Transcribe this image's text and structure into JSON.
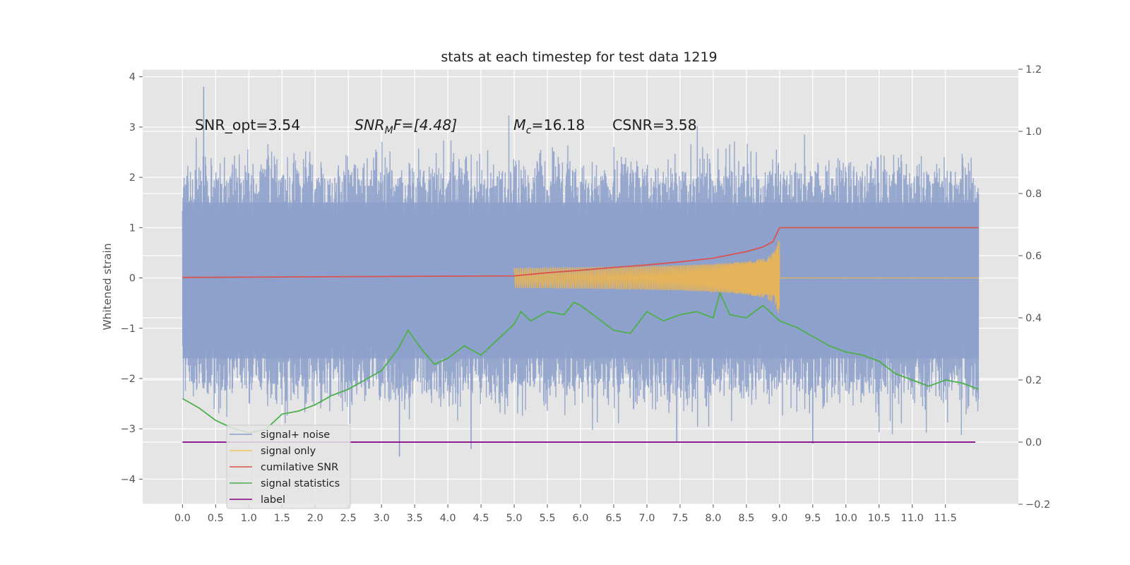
{
  "chart_data": {
    "type": "line",
    "title": "stats at each timestep for test data 1219",
    "ylabel": "Whitened strain",
    "xlabel": "",
    "xlim": [
      -0.6,
      12.6
    ],
    "ylim": [
      -4.5,
      4.15
    ],
    "y2lim": [
      -0.2,
      1.2
    ],
    "x_ticks": [
      0.0,
      0.5,
      1.0,
      1.5,
      2.0,
      2.5,
      3.0,
      3.5,
      4.0,
      4.5,
      5.0,
      5.5,
      6.0,
      6.5,
      7.0,
      7.5,
      8.0,
      8.5,
      9.0,
      9.5,
      10.0,
      10.5,
      11.0,
      11.5
    ],
    "x_tick_labels": [
      "0.0",
      "0.5",
      "1.0",
      "1.5",
      "2.0",
      "2.5",
      "3.0",
      "3.5",
      "4.0",
      "4.5",
      "5.0",
      "5.5",
      "6.0",
      "6.5",
      "7.0",
      "7.5",
      "8.0",
      "8.5",
      "9.0",
      "9.5",
      "10.0",
      "10.5",
      "11.0",
      "11.5"
    ],
    "y_ticks": [
      4,
      3,
      2,
      1,
      0,
      -1,
      -2,
      -3,
      -4
    ],
    "y_tick_labels": [
      "4",
      "3",
      "2",
      "1",
      "0",
      "−1",
      "−2",
      "−3",
      "−4"
    ],
    "y2_ticks": [
      1.2,
      1.0,
      0.8,
      0.6,
      0.4,
      0.2,
      0.0,
      -0.2
    ],
    "y2_tick_labels": [
      "1.2",
      "1.0",
      "0.8",
      "0.6",
      "0.4",
      "0.2",
      "0.0",
      "−0.2"
    ],
    "grid": true,
    "legend_placement": "lower-left",
    "annotations": {
      "snr_opt": "SNR_opt=3.54",
      "snr_mf_main": "SNR",
      "snr_mf_sub": "M",
      "snr_mf_rest": "F=[4.48]",
      "mc_main": "M",
      "mc_sub": "c",
      "mc_rest": "=16.18",
      "csnr": "CSNR=3.58"
    },
    "series": [
      {
        "name": "signal+ noise",
        "axis": "left",
        "color": "#8da0cb",
        "x_start": 0.0,
        "x_end": 12.0,
        "typical_range": [
          -2.0,
          1.8
        ],
        "extreme_peaks": [
          [
            0.32,
            3.8
          ],
          [
            3.27,
            -3.55
          ],
          [
            4.35,
            -3.4
          ],
          [
            7.45,
            -3.25
          ],
          [
            9.5,
            -3.3
          ],
          [
            6.0,
            1.3
          ],
          [
            6.0,
            -1.05
          ]
        ]
      },
      {
        "name": "signal only",
        "axis": "left",
        "color": "#e5b35a",
        "chirp_start": 5.0,
        "merger": 9.0,
        "peak_amplitude": 0.75,
        "x_end": 12.0
      },
      {
        "name": "cumilative SNR",
        "axis": "right",
        "color": "#d9534f",
        "x": [
          0.0,
          1.0,
          2.0,
          3.0,
          4.0,
          5.0,
          5.5,
          6.0,
          6.5,
          7.0,
          7.5,
          8.0,
          8.5,
          8.75,
          8.9,
          9.0,
          12.0
        ],
        "values": [
          0.53,
          0.531,
          0.532,
          0.533,
          0.534,
          0.535,
          0.545,
          0.553,
          0.562,
          0.57,
          0.58,
          0.592,
          0.613,
          0.628,
          0.645,
          0.69,
          0.69
        ]
      },
      {
        "name": "signal statistics",
        "axis": "right",
        "color": "#4daf4a",
        "x": [
          0.0,
          0.25,
          0.5,
          0.75,
          1.0,
          1.25,
          1.5,
          1.75,
          2.0,
          2.25,
          2.5,
          2.75,
          3.0,
          3.25,
          3.4,
          3.6,
          3.8,
          4.0,
          4.25,
          4.5,
          4.75,
          5.0,
          5.1,
          5.25,
          5.5,
          5.75,
          5.9,
          6.0,
          6.25,
          6.5,
          6.75,
          7.0,
          7.25,
          7.5,
          7.75,
          8.0,
          8.1,
          8.25,
          8.5,
          8.75,
          9.0,
          9.25,
          9.5,
          9.75,
          10.0,
          10.25,
          10.5,
          10.75,
          11.0,
          11.25,
          11.5,
          11.75,
          12.0
        ],
        "values": [
          0.14,
          0.11,
          0.07,
          0.045,
          0.03,
          0.04,
          0.09,
          0.1,
          0.12,
          0.15,
          0.17,
          0.2,
          0.23,
          0.3,
          0.36,
          0.3,
          0.25,
          0.27,
          0.31,
          0.28,
          0.33,
          0.38,
          0.42,
          0.39,
          0.42,
          0.41,
          0.45,
          0.44,
          0.4,
          0.36,
          0.35,
          0.42,
          0.39,
          0.41,
          0.42,
          0.4,
          0.48,
          0.41,
          0.4,
          0.44,
          0.39,
          0.37,
          0.34,
          0.31,
          0.29,
          0.28,
          0.26,
          0.22,
          0.2,
          0.18,
          0.2,
          0.19,
          0.17
        ]
      },
      {
        "name": "label",
        "axis": "right",
        "color": "#800080",
        "x": [
          0.0,
          11.95
        ],
        "values": [
          0.0,
          0.0
        ]
      }
    ]
  }
}
